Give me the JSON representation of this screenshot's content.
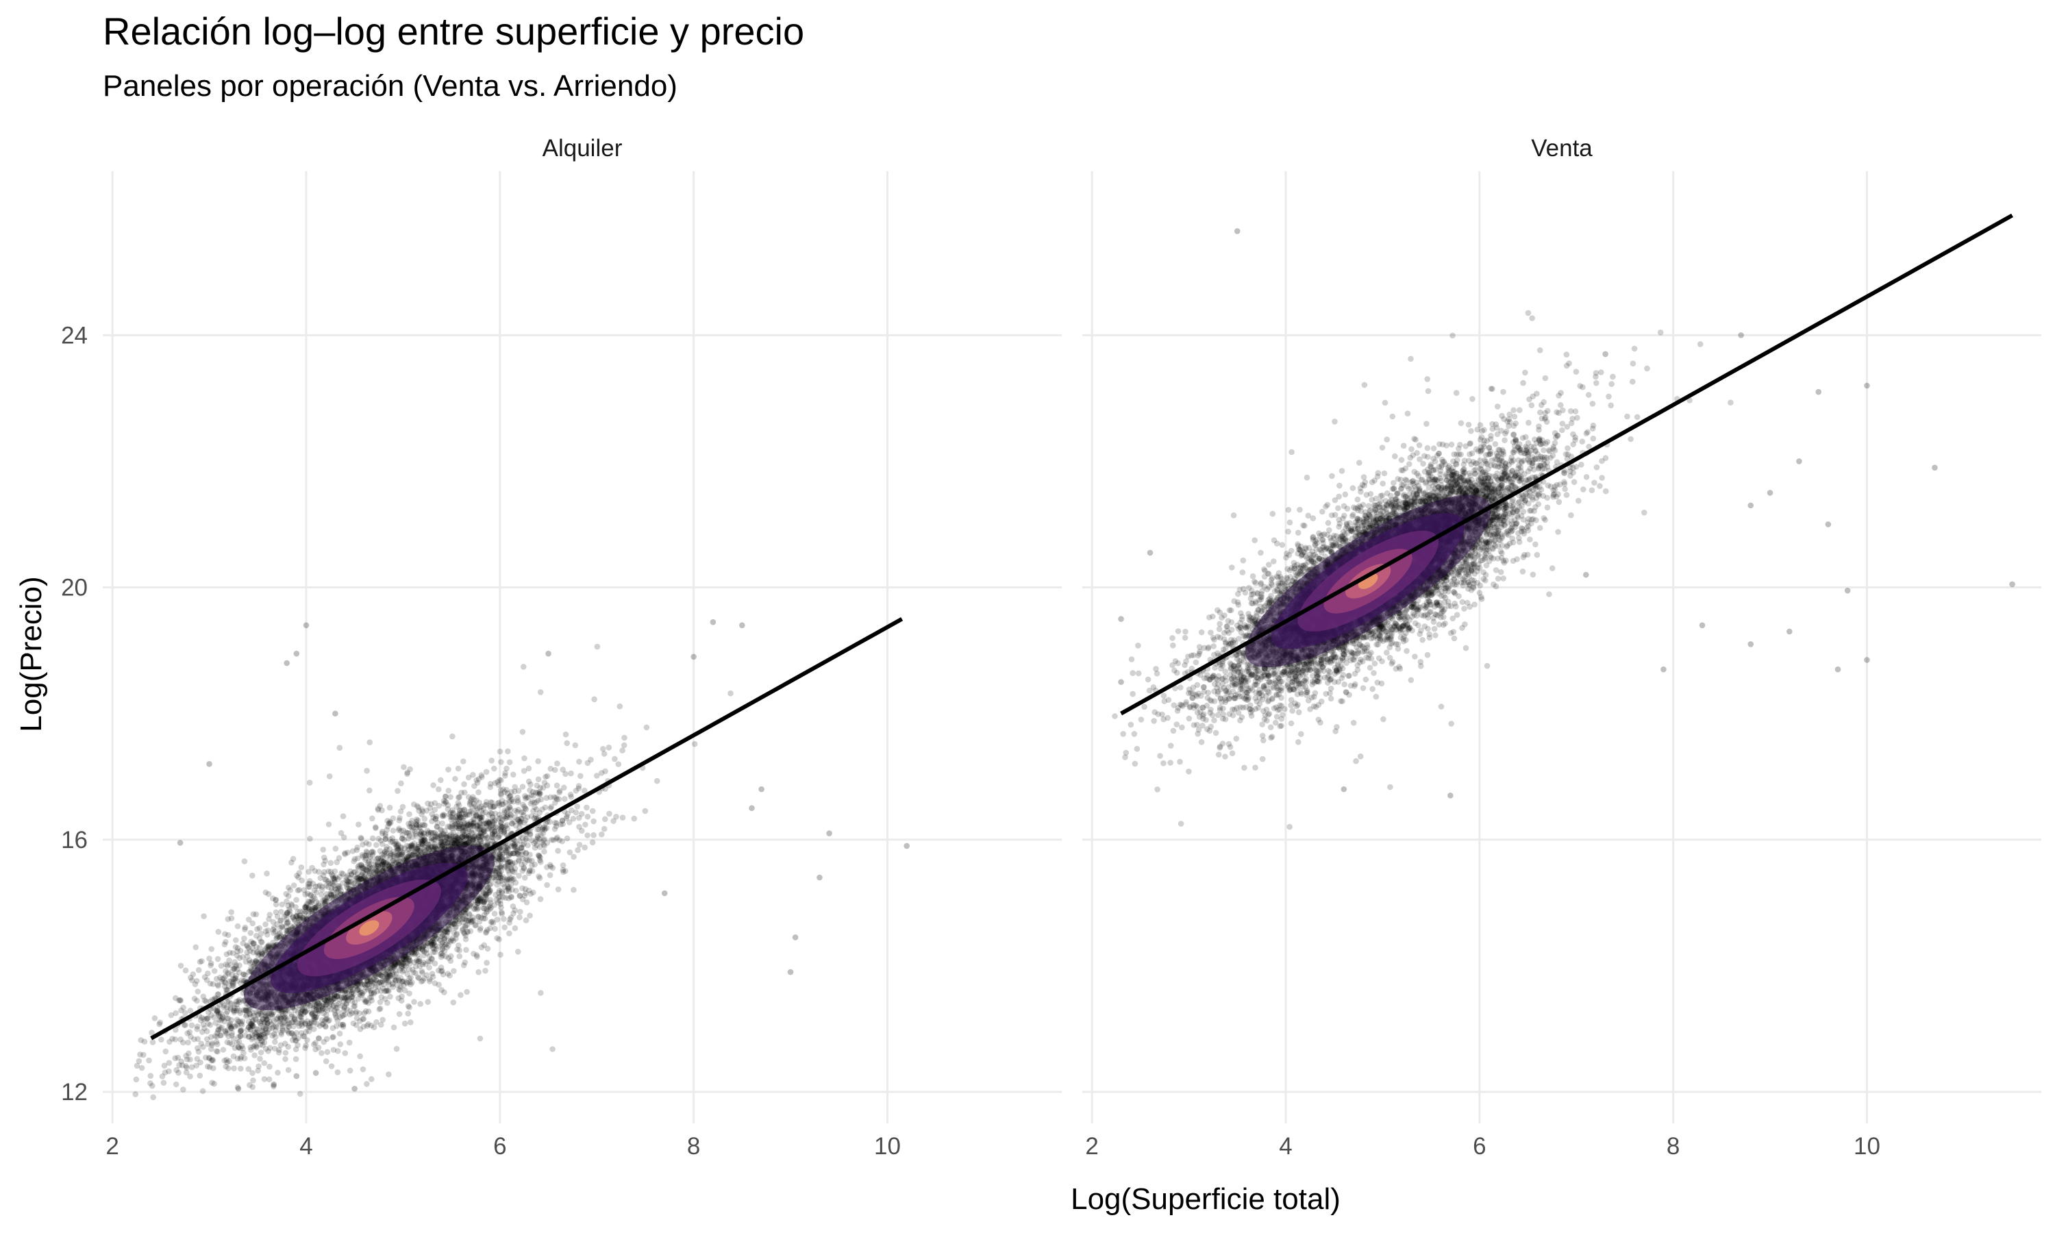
{
  "chart_data": {
    "type": "scatter",
    "title": "Relación log–log entre superficie y precio",
    "subtitle": "Paneles por operación (Venta vs. Arriendo)",
    "xlabel": "Log(Superficie total)",
    "ylabel": "Log(Precio)",
    "xlim": [
      1.9,
      11.8
    ],
    "ylim": [
      11.5,
      26.6
    ],
    "x_ticks": [
      2,
      4,
      6,
      8,
      10
    ],
    "y_ticks": [
      12,
      16,
      20,
      24
    ],
    "x_tick_labels": [
      "2",
      "4",
      "6",
      "8",
      "10"
    ],
    "y_tick_labels": [
      "12",
      "16",
      "20",
      "24"
    ],
    "grid": true,
    "legend": "none",
    "colors": {
      "points": "#000000",
      "fit_line": "#000000",
      "density_low": "#2b1245",
      "density_mid": "#6b2a78",
      "density_high": "#e8956b",
      "grid": "#ebebeb"
    },
    "panels": [
      {
        "label": "Alquiler",
        "points_n": 9000,
        "density_center": [
          4.3,
          14.2
        ],
        "slope_cloud": 1.15,
        "fit_line": {
          "x": [
            2.4,
            10.15
          ],
          "y": [
            12.85,
            19.5
          ]
        },
        "outliers": [
          [
            3.3,
            12.05
          ],
          [
            3.9,
            12.25
          ],
          [
            4.1,
            12.3
          ],
          [
            4.5,
            12.05
          ],
          [
            3.0,
            17.2
          ],
          [
            2.7,
            15.95
          ],
          [
            3.8,
            18.8
          ],
          [
            3.9,
            18.95
          ],
          [
            4.0,
            19.4
          ],
          [
            4.3,
            18.0
          ],
          [
            6.5,
            18.95
          ],
          [
            8.0,
            18.9
          ],
          [
            8.2,
            19.45
          ],
          [
            8.5,
            19.4
          ],
          [
            9.0,
            13.9
          ],
          [
            9.05,
            14.45
          ],
          [
            9.3,
            15.4
          ],
          [
            9.4,
            16.1
          ],
          [
            10.2,
            15.9
          ],
          [
            8.6,
            16.5
          ],
          [
            8.7,
            16.8
          ],
          [
            7.7,
            15.15
          ]
        ]
      },
      {
        "label": "Venta",
        "points_n": 9000,
        "density_center": [
          4.5,
          19.7
        ],
        "slope_cloud": 1.25,
        "fit_line": {
          "x": [
            2.3,
            11.5
          ],
          "y": [
            18.0,
            25.9
          ]
        },
        "outliers": [
          [
            3.5,
            25.65
          ],
          [
            5.7,
            16.7
          ],
          [
            4.6,
            16.8
          ],
          [
            2.3,
            18.5
          ],
          [
            2.3,
            19.5
          ],
          [
            2.6,
            20.55
          ],
          [
            8.7,
            24.0
          ],
          [
            10.0,
            23.2
          ],
          [
            9.5,
            23.1
          ],
          [
            10.7,
            21.9
          ],
          [
            11.5,
            20.05
          ],
          [
            9.7,
            18.7
          ],
          [
            9.8,
            19.95
          ],
          [
            7.9,
            18.7
          ],
          [
            8.3,
            19.4
          ],
          [
            8.8,
            19.1
          ],
          [
            9.2,
            19.3
          ],
          [
            10.0,
            18.85
          ],
          [
            9.6,
            21.0
          ],
          [
            9.3,
            22.0
          ],
          [
            9.0,
            21.5
          ],
          [
            8.8,
            21.3
          ],
          [
            7.3,
            23.7
          ],
          [
            7.1,
            20.2
          ]
        ]
      }
    ]
  }
}
